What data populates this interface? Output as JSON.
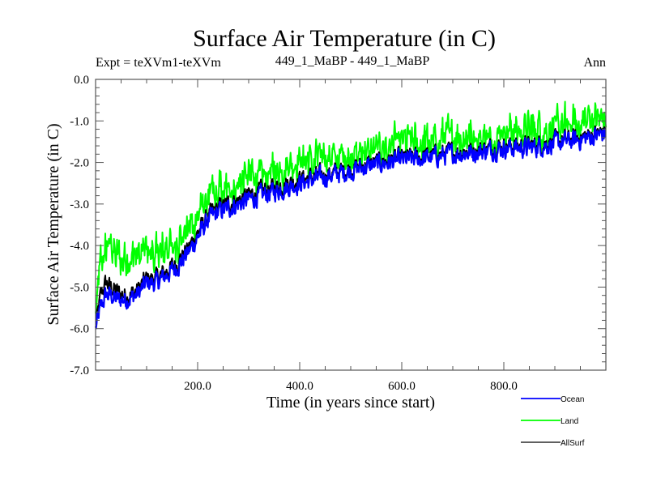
{
  "chart_data": {
    "type": "line",
    "title": "Surface Air Temperature (in C)",
    "subtitle_left": "Expt = teXVm1-teXVm",
    "subtitle_center": "449_1_MaBP - 449_1_MaBP",
    "subtitle_right": "Ann",
    "xlabel": "Time (in years since start)",
    "ylabel": "Surface Air Temperature (in C)",
    "xlim": [
      0,
      1000
    ],
    "ylim": [
      -7.0,
      0.0
    ],
    "x_ticks": [
      200,
      400,
      600,
      800
    ],
    "x_tick_labels": [
      "200.0",
      "400.0",
      "600.0",
      "800.0"
    ],
    "y_ticks": [
      0,
      -1,
      -2,
      -3,
      -4,
      -5,
      -6,
      -7
    ],
    "y_tick_labels": [
      "0.0",
      "-1.0",
      "-2.0",
      "-3.0",
      "-4.0",
      "-5.0",
      "-6.0",
      "-7.0"
    ],
    "grid": false,
    "legend_position": "bottom-right-outside",
    "series": [
      {
        "name": "AllSurf",
        "color": "#000000",
        "x": [
          0,
          10,
          20,
          30,
          40,
          60,
          80,
          100,
          120,
          140,
          160,
          180,
          200,
          220,
          240,
          260,
          300,
          350,
          400,
          450,
          500,
          550,
          600,
          650,
          700,
          750,
          800,
          850,
          900,
          950,
          1000
        ],
        "values": [
          -6.0,
          -5.2,
          -4.9,
          -5.0,
          -5.1,
          -5.2,
          -5.1,
          -4.8,
          -4.8,
          -4.6,
          -4.4,
          -4.1,
          -3.7,
          -3.3,
          -3.1,
          -3.0,
          -2.8,
          -2.6,
          -2.4,
          -2.3,
          -2.15,
          -2.0,
          -1.9,
          -1.85,
          -1.75,
          -1.7,
          -1.6,
          -1.6,
          -1.5,
          -1.4,
          -1.25
        ]
      },
      {
        "name": "Land",
        "color": "#00ff00",
        "x": [
          0,
          10,
          20,
          30,
          40,
          60,
          80,
          100,
          120,
          140,
          160,
          180,
          200,
          220,
          240,
          260,
          300,
          350,
          400,
          450,
          500,
          550,
          600,
          650,
          700,
          750,
          800,
          850,
          900,
          950,
          1000
        ],
        "values": [
          -5.8,
          -4.4,
          -4.1,
          -4.0,
          -4.2,
          -4.3,
          -4.3,
          -4.1,
          -4.3,
          -4.0,
          -3.9,
          -3.6,
          -3.3,
          -2.9,
          -2.7,
          -2.6,
          -2.4,
          -2.2,
          -2.0,
          -1.9,
          -1.8,
          -1.65,
          -1.55,
          -1.5,
          -1.4,
          -1.35,
          -1.3,
          -1.25,
          -1.15,
          -1.05,
          -0.9
        ]
      },
      {
        "name": "Ocean",
        "color": "#0000ff",
        "x": [
          0,
          10,
          20,
          30,
          40,
          60,
          80,
          100,
          120,
          140,
          160,
          180,
          200,
          220,
          240,
          260,
          300,
          350,
          400,
          450,
          500,
          550,
          600,
          650,
          700,
          750,
          800,
          850,
          900,
          950,
          1000
        ],
        "values": [
          -6.0,
          -5.5,
          -5.2,
          -5.2,
          -5.3,
          -5.3,
          -5.2,
          -4.9,
          -4.9,
          -4.7,
          -4.5,
          -4.2,
          -3.8,
          -3.4,
          -3.2,
          -3.1,
          -2.9,
          -2.7,
          -2.5,
          -2.35,
          -2.2,
          -2.05,
          -1.95,
          -1.9,
          -1.8,
          -1.75,
          -1.65,
          -1.65,
          -1.55,
          -1.45,
          -1.3
        ]
      }
    ]
  }
}
